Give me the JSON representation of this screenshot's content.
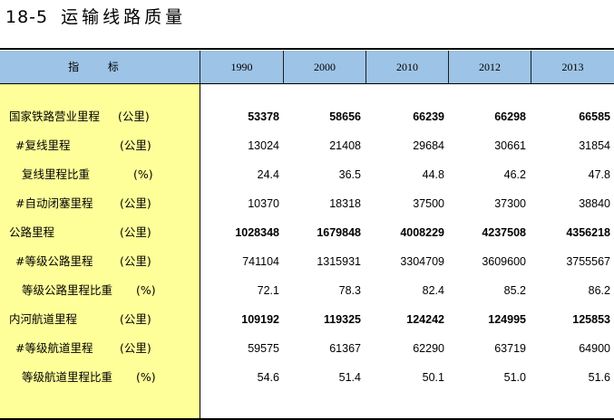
{
  "title": {
    "number": "18-5",
    "text": "运输线路质量"
  },
  "header": {
    "label": "指 标",
    "years": [
      "1990",
      "2000",
      "2010",
      "2012",
      "2013"
    ]
  },
  "rows": [
    {
      "label": "国家铁路营业里程",
      "unit": "(公里)",
      "values": [
        "53378",
        "58656",
        "66239",
        "66298",
        "66585"
      ],
      "bold": true
    },
    {
      "label": "#复线里程",
      "unit": "(公里)",
      "values": [
        "13024",
        "21408",
        "29684",
        "30661",
        "31854"
      ],
      "bold": false
    },
    {
      "label": "复线里程比重",
      "unit": "(%)",
      "values": [
        "24.4",
        "36.5",
        "44.8",
        "46.2",
        "47.8"
      ],
      "bold": false
    },
    {
      "label": "#自动闭塞里程",
      "unit": "(公里)",
      "values": [
        "10370",
        "18318",
        "37500",
        "37300",
        "38840"
      ],
      "bold": false
    },
    {
      "label": "公路里程",
      "unit": "(公里)",
      "values": [
        "1028348",
        "1679848",
        "4008229",
        "4237508",
        "4356218"
      ],
      "bold": true
    },
    {
      "label": "#等级公路里程",
      "unit": "(公里)",
      "values": [
        "741104",
        "1315931",
        "3304709",
        "3609600",
        "3755567"
      ],
      "bold": false
    },
    {
      "label": "等级公路里程比重",
      "unit": "(%)",
      "values": [
        "72.1",
        "78.3",
        "82.4",
        "85.2",
        "86.2"
      ],
      "bold": false
    },
    {
      "label": "内河航道里程",
      "unit": "(公里)",
      "values": [
        "109192",
        "119325",
        "124242",
        "124995",
        "125853"
      ],
      "bold": true
    },
    {
      "label": "#等级航道里程",
      "unit": "(公里)",
      "values": [
        "59575",
        "61367",
        "62290",
        "63719",
        "64900"
      ],
      "bold": false
    },
    {
      "label": "等级航道里程比重",
      "unit": "(%)",
      "values": [
        "54.6",
        "51.4",
        "50.1",
        "51.0",
        "51.6"
      ],
      "bold": false
    }
  ],
  "colors": {
    "header_bg": "#9dc3e6",
    "label_column_bg": "#ffff99"
  }
}
